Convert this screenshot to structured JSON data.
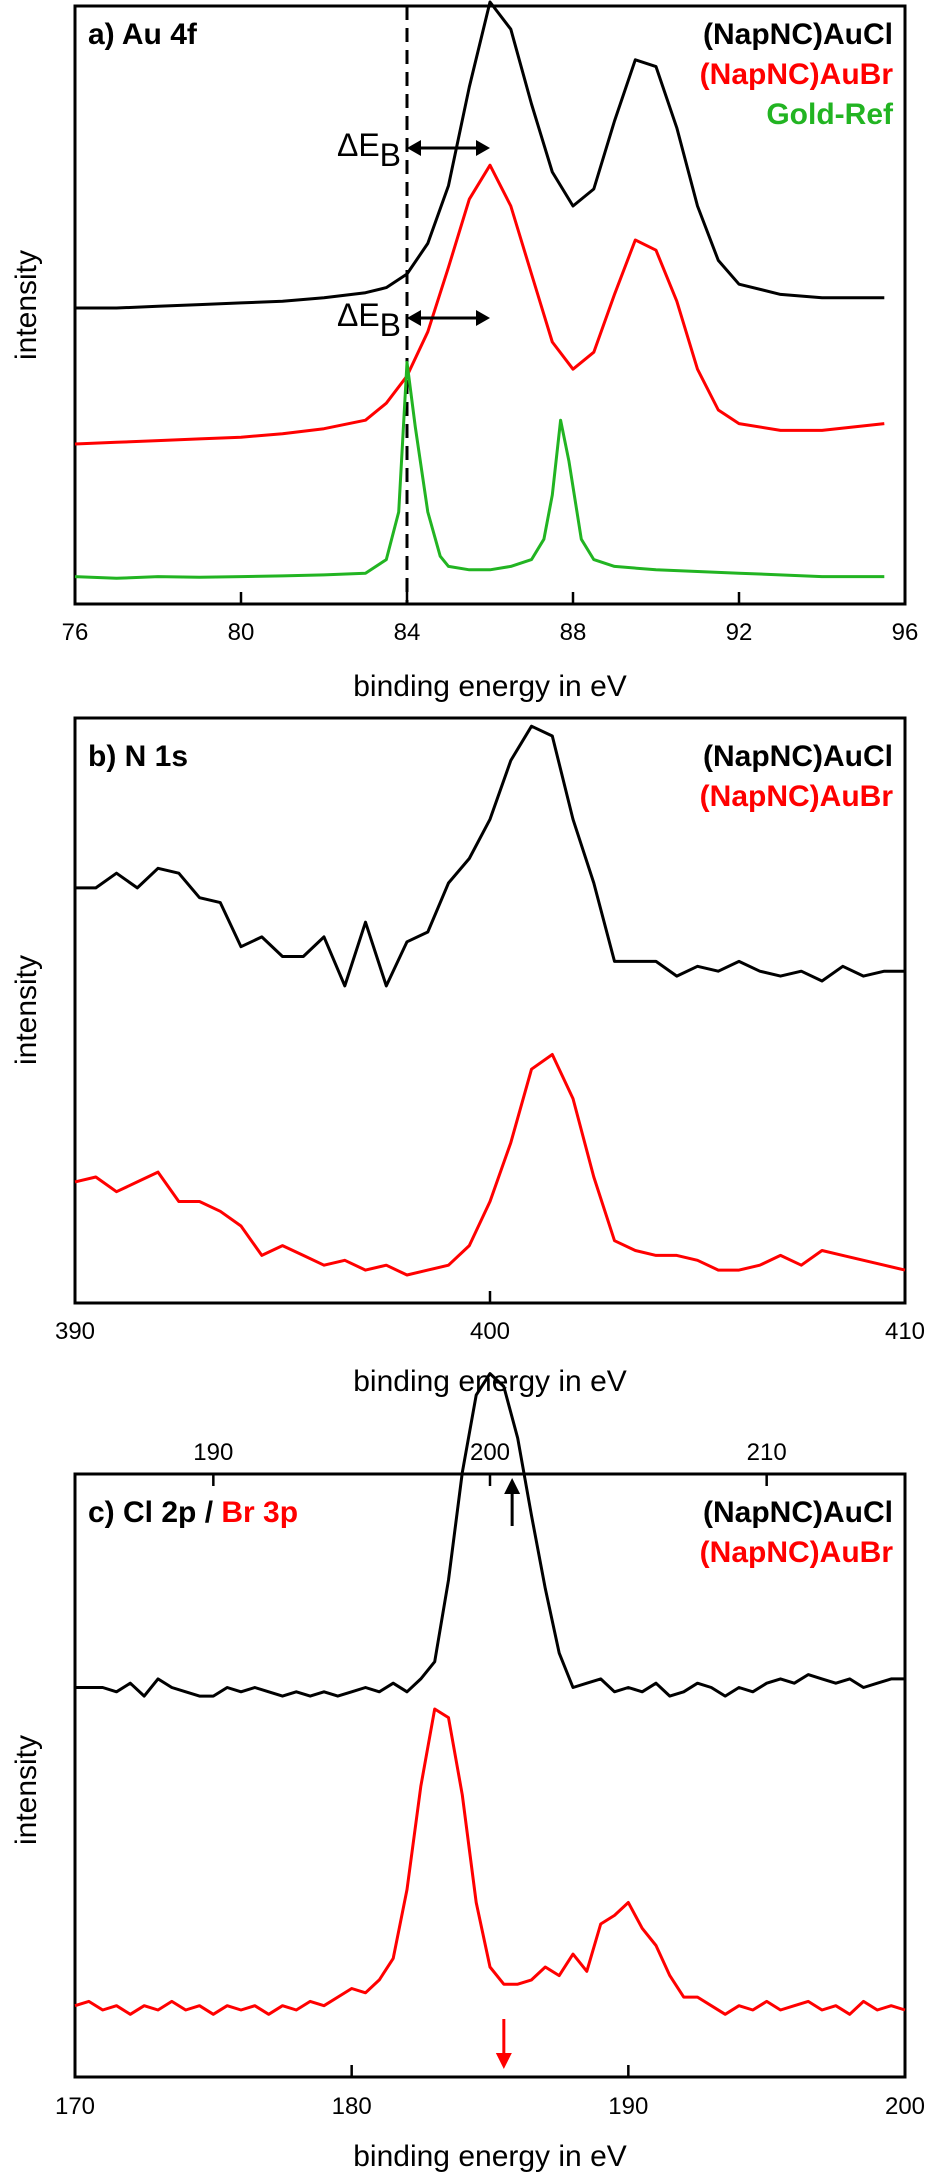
{
  "chart_data": [
    {
      "panel": "a",
      "type": "line",
      "title": "a) Au 4f",
      "xlabel": "binding energy in eV",
      "ylabel": "intensity",
      "xlim": [
        76,
        96
      ],
      "xticks": [
        76,
        80,
        84,
        88,
        92,
        96
      ],
      "grid": false,
      "legend_position": "top-right",
      "reference_line_x": 84,
      "annotations": [
        {
          "text": "ΔE",
          "sub": "B",
          "series": "(NapNC)AuCl",
          "x_from": 84,
          "x_to": 86
        },
        {
          "text": "ΔE",
          "sub": "B",
          "series": "(NapNC)AuBr",
          "x_from": 84,
          "x_to": 86
        }
      ],
      "series": [
        {
          "name": "(NapNC)AuCl",
          "color": "#000000",
          "offset": 0.8,
          "x": [
            76,
            77,
            78,
            79,
            80,
            81,
            82,
            83,
            83.5,
            84,
            84.5,
            85,
            85.5,
            86,
            86.5,
            87,
            87.5,
            88,
            88.5,
            89,
            89.5,
            90,
            90.5,
            91,
            91.5,
            92,
            93,
            94,
            95.5
          ],
          "y": [
            0,
            0,
            0.005,
            0.01,
            0.015,
            0.02,
            0.03,
            0.045,
            0.06,
            0.1,
            0.19,
            0.36,
            0.65,
            0.9,
            0.82,
            0.6,
            0.4,
            0.3,
            0.35,
            0.55,
            0.73,
            0.71,
            0.53,
            0.3,
            0.14,
            0.07,
            0.04,
            0.03,
            0.03
          ]
        },
        {
          "name": "(NapNC)AuBr",
          "color": "#ff0000",
          "offset": 0.4,
          "x": [
            76,
            77,
            78,
            79,
            80,
            81,
            82,
            83,
            83.5,
            84,
            84.5,
            85,
            85.5,
            86,
            86.5,
            87,
            87.5,
            88,
            88.5,
            89,
            89.5,
            90,
            90.5,
            91,
            91.5,
            92,
            93,
            94,
            95.5
          ],
          "y": [
            0,
            0.005,
            0.01,
            0.015,
            0.02,
            0.03,
            0.045,
            0.07,
            0.12,
            0.2,
            0.33,
            0.52,
            0.72,
            0.82,
            0.7,
            0.5,
            0.3,
            0.22,
            0.27,
            0.44,
            0.6,
            0.57,
            0.42,
            0.22,
            0.1,
            0.06,
            0.04,
            0.04,
            0.06
          ]
        },
        {
          "name": "Gold-Ref",
          "color": "#22b422",
          "offset": 0,
          "x": [
            76,
            77,
            78,
            79,
            80,
            81,
            82,
            83,
            83.5,
            83.8,
            84,
            84.2,
            84.5,
            84.8,
            85,
            85.5,
            86,
            86.5,
            87,
            87.3,
            87.5,
            87.7,
            87.9,
            88.2,
            88.5,
            89,
            90,
            92,
            94,
            95.5
          ],
          "y": [
            0.01,
            0.005,
            0.01,
            0.008,
            0.01,
            0.012,
            0.015,
            0.02,
            0.06,
            0.2,
            0.64,
            0.45,
            0.2,
            0.07,
            0.04,
            0.03,
            0.03,
            0.04,
            0.06,
            0.12,
            0.25,
            0.47,
            0.35,
            0.12,
            0.06,
            0.04,
            0.03,
            0.02,
            0.01,
            0.01
          ]
        }
      ]
    },
    {
      "panel": "b",
      "type": "line",
      "title": "b) N 1s",
      "xlabel": "binding energy in eV",
      "ylabel": "intensity",
      "xlim": [
        390,
        410
      ],
      "xticks": [
        390,
        400,
        410
      ],
      "grid": false,
      "legend_position": "top-right",
      "series": [
        {
          "name": "(NapNC)AuCl",
          "color": "#000000",
          "offset": 0.55,
          "x": [
            390,
            390.5,
            391,
            391.5,
            392,
            392.5,
            393,
            393.5,
            394,
            394.5,
            395,
            395.5,
            396,
            396.5,
            397,
            397.5,
            398,
            398.5,
            399,
            399.5,
            400,
            400.5,
            401,
            401.5,
            402,
            402.5,
            403,
            403.5,
            404,
            404.5,
            405,
            405.5,
            406,
            406.5,
            407,
            407.5,
            408,
            408.5,
            409,
            409.5,
            410
          ],
          "y": [
            0.24,
            0.24,
            0.27,
            0.24,
            0.28,
            0.27,
            0.22,
            0.21,
            0.12,
            0.14,
            0.1,
            0.1,
            0.14,
            0.04,
            0.17,
            0.04,
            0.13,
            0.15,
            0.25,
            0.3,
            0.38,
            0.5,
            0.57,
            0.55,
            0.38,
            0.25,
            0.09,
            0.09,
            0.09,
            0.06,
            0.08,
            0.07,
            0.09,
            0.07,
            0.06,
            0.07,
            0.05,
            0.08,
            0.06,
            0.07,
            0.07
          ]
        },
        {
          "name": "(NapNC)AuBr",
          "color": "#ff0000",
          "offset": 0,
          "x": [
            390,
            390.5,
            391,
            391.5,
            392,
            392.5,
            393,
            393.5,
            394,
            394.5,
            395,
            395.5,
            396,
            396.5,
            397,
            397.5,
            398,
            398.5,
            399,
            399.5,
            400,
            400.5,
            401,
            401.5,
            402,
            402.5,
            403,
            403.5,
            404,
            404.5,
            405,
            405.5,
            406,
            406.5,
            407,
            407.5,
            408,
            408.5,
            409,
            409.5,
            410
          ],
          "y": [
            0.19,
            0.2,
            0.17,
            0.19,
            0.21,
            0.15,
            0.15,
            0.13,
            0.1,
            0.04,
            0.06,
            0.04,
            0.02,
            0.03,
            0.01,
            0.02,
            0,
            0.01,
            0.02,
            0.06,
            0.15,
            0.27,
            0.42,
            0.45,
            0.36,
            0.2,
            0.07,
            0.05,
            0.04,
            0.04,
            0.03,
            0.01,
            0.01,
            0.02,
            0.04,
            0.02,
            0.05,
            0.04,
            0.03,
            0.02,
            0.01
          ]
        }
      ]
    },
    {
      "panel": "c",
      "type": "line",
      "title_part1": "c) Cl 2p / ",
      "title_part2": "Br 3p",
      "xlabel": "binding energy in eV",
      "ylabel": "intensity",
      "xlim": [
        170,
        200
      ],
      "xticks": [
        170,
        180,
        190,
        200
      ],
      "xlim_top": [
        185,
        215
      ],
      "xticks_top": [
        190,
        200,
        210
      ],
      "grid": false,
      "legend_position": "top-right",
      "marker_top_x": 200.8,
      "marker_bottom_x": 185.5,
      "series": [
        {
          "name": "(NapNC)AuCl",
          "color": "#000000",
          "axis": "top",
          "offset": 0.75,
          "x": [
            185,
            185.5,
            186,
            186.5,
            187,
            187.5,
            188,
            188.5,
            189,
            189.5,
            190,
            190.5,
            191,
            191.5,
            192,
            192.5,
            193,
            193.5,
            194,
            194.5,
            195,
            195.5,
            196,
            196.5,
            197,
            197.5,
            198,
            198.5,
            199,
            199.5,
            200,
            200.5,
            201,
            201.5,
            202,
            202.5,
            203,
            203.5,
            204,
            204.5,
            205,
            205.5,
            206,
            206.5,
            207,
            207.5,
            208,
            208.5,
            209,
            209.5,
            210,
            210.5,
            211,
            211.5,
            212,
            212.5,
            213,
            213.5,
            214,
            214.5,
            215
          ],
          "y": [
            0,
            0,
            0,
            -0.01,
            0.01,
            -0.02,
            0.02,
            0,
            -0.01,
            -0.02,
            -0.02,
            0,
            -0.01,
            0,
            -0.01,
            -0.02,
            -0.01,
            -0.02,
            -0.01,
            -0.02,
            -0.01,
            0,
            -0.01,
            0.01,
            -0.01,
            0.02,
            0.06,
            0.25,
            0.5,
            0.68,
            0.73,
            0.7,
            0.58,
            0.4,
            0.23,
            0.08,
            0,
            0.01,
            0.02,
            -0.01,
            0,
            -0.01,
            0.01,
            -0.02,
            -0.01,
            0.01,
            0,
            -0.02,
            0,
            -0.01,
            0.01,
            0.02,
            0.01,
            0.03,
            0.02,
            0.01,
            0.02,
            0,
            0.01,
            0.02,
            0.02
          ]
        },
        {
          "name": "(NapNC)AuBr",
          "color": "#ff0000",
          "axis": "bottom",
          "offset": 0,
          "x": [
            170,
            170.5,
            171,
            171.5,
            172,
            172.5,
            173,
            173.5,
            174,
            174.5,
            175,
            175.5,
            176,
            176.5,
            177,
            177.5,
            178,
            178.5,
            179,
            179.5,
            180,
            180.5,
            181,
            181.5,
            182,
            182.5,
            183,
            183.5,
            184,
            184.5,
            185,
            185.5,
            186,
            186.5,
            187,
            187.5,
            188,
            188.5,
            189,
            189.5,
            190,
            190.5,
            191,
            191.5,
            192,
            192.5,
            193,
            193.5,
            194,
            194.5,
            195,
            195.5,
            196,
            196.5,
            197,
            197.5,
            198,
            198.5,
            199,
            199.5,
            200
          ],
          "y": [
            0.01,
            0.02,
            0,
            0.01,
            -0.01,
            0.01,
            0,
            0.02,
            0,
            0.01,
            -0.01,
            0.01,
            0,
            0.01,
            -0.01,
            0.01,
            0,
            0.02,
            0.01,
            0.03,
            0.05,
            0.04,
            0.07,
            0.12,
            0.28,
            0.52,
            0.7,
            0.68,
            0.5,
            0.25,
            0.1,
            0.06,
            0.06,
            0.07,
            0.1,
            0.08,
            0.13,
            0.09,
            0.2,
            0.22,
            0.25,
            0.19,
            0.15,
            0.08,
            0.03,
            0.03,
            0.01,
            -0.01,
            0.01,
            0,
            0.02,
            0,
            0.01,
            0.02,
            0,
            0.01,
            -0.01,
            0.02,
            0,
            0.01,
            0
          ]
        }
      ]
    }
  ],
  "legend_colors": {
    "AuCl": "#000000",
    "AuBr": "#ff0000",
    "GoldRef": "#22b422"
  }
}
